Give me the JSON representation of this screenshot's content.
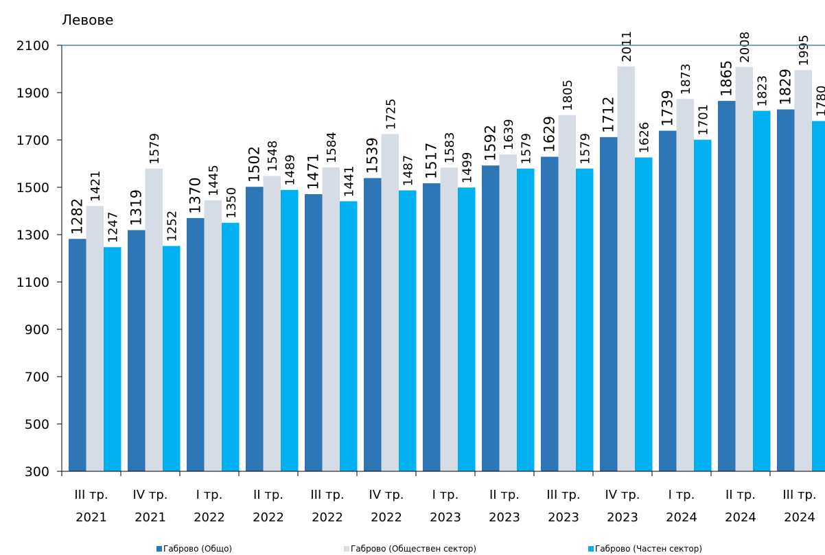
{
  "chart_data": {
    "type": "bar",
    "ylabel": "Левове",
    "ylim": [
      300,
      2100
    ],
    "yticks": [
      300,
      500,
      700,
      900,
      1100,
      1300,
      1500,
      1700,
      1900,
      2100
    ],
    "grid": false,
    "legend_position": "bottom",
    "categories": [
      [
        "III тр.",
        "2021"
      ],
      [
        "IV тр.",
        "2021"
      ],
      [
        "I тр.",
        "2022"
      ],
      [
        "II тр.",
        "2022"
      ],
      [
        "III тр.",
        "2022"
      ],
      [
        "IV тр.",
        "2022"
      ],
      [
        "I тр.",
        "2023"
      ],
      [
        "II тр.",
        "2023"
      ],
      [
        "III тр.",
        "2023"
      ],
      [
        "IV тр.",
        "2023"
      ],
      [
        "I тр.",
        "2024"
      ],
      [
        "II тр.",
        "2024"
      ],
      [
        "III тр.",
        "2024"
      ]
    ],
    "series": [
      {
        "name": "Габрово (Общо)",
        "color": "#2E75B6",
        "values": [
          1282,
          1319,
          1370,
          1502,
          1471,
          1539,
          1517,
          1592,
          1629,
          1712,
          1739,
          1865,
          1829
        ]
      },
      {
        "name": "Габрово (Обществен сектор)",
        "color": "#D6DCE5",
        "values": [
          1421,
          1579,
          1445,
          1548,
          1584,
          1725,
          1583,
          1639,
          1805,
          2011,
          1873,
          2008,
          1995
        ]
      },
      {
        "name": "Габрово (Частен сектор)",
        "color": "#00B0F0",
        "values": [
          1247,
          1252,
          1350,
          1489,
          1441,
          1487,
          1499,
          1579,
          1579,
          1626,
          1701,
          1823,
          1780
        ]
      }
    ]
  }
}
